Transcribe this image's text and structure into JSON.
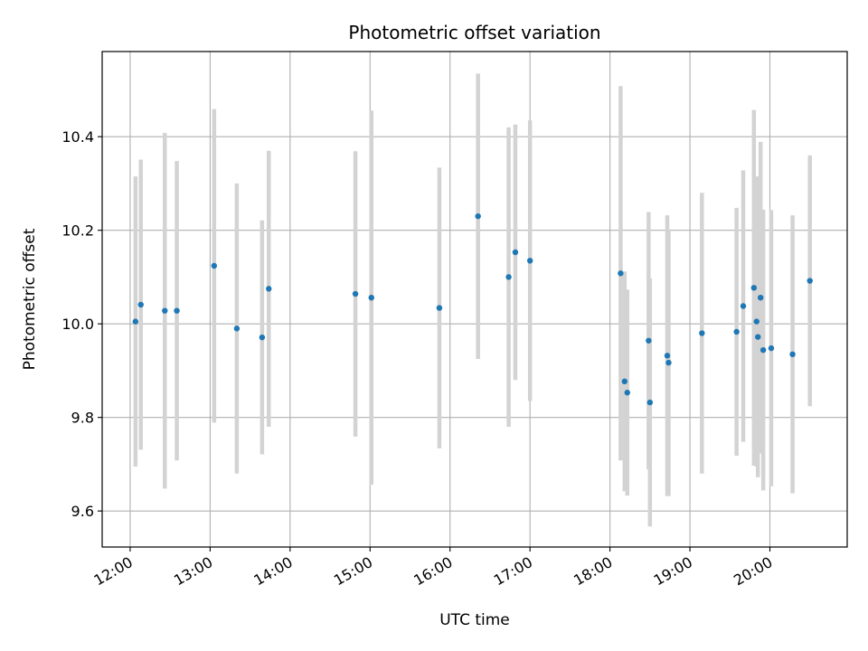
{
  "chart_data": {
    "type": "scatter",
    "title": "Photometric offset variation",
    "xlabel": "UTC time",
    "ylabel": "Photometric offset",
    "grid": true,
    "xlim": [
      "11:39",
      "20:58"
    ],
    "ylim": [
      9.523,
      10.582
    ],
    "xticks": [
      "12:00",
      "13:00",
      "14:00",
      "15:00",
      "16:00",
      "17:00",
      "18:00",
      "19:00",
      "20:00"
    ],
    "yticks": [
      "9.6",
      "9.8",
      "10.0",
      "10.2",
      "10.4"
    ],
    "colors": {
      "marker": "#1f77b4",
      "errorbar": "#d3d3d3",
      "grid": "#b0b0b0"
    },
    "series": [
      {
        "points": [
          {
            "x": "12:04",
            "y": 10.005,
            "err": 0.31
          },
          {
            "x": "12:08",
            "y": 10.041,
            "err": 0.31
          },
          {
            "x": "12:26",
            "y": 10.028,
            "err": 0.38
          },
          {
            "x": "12:35",
            "y": 10.028,
            "err": 0.32
          },
          {
            "x": "13:03",
            "y": 10.124,
            "err": 0.335
          },
          {
            "x": "13:20",
            "y": 9.99,
            "err": 0.31
          },
          {
            "x": "13:39",
            "y": 9.971,
            "err": 0.25
          },
          {
            "x": "13:44",
            "y": 10.075,
            "err": 0.295
          },
          {
            "x": "14:49",
            "y": 10.064,
            "err": 0.305
          },
          {
            "x": "15:01",
            "y": 10.056,
            "err": 0.4
          },
          {
            "x": "15:52",
            "y": 10.034,
            "err": 0.3
          },
          {
            "x": "16:21",
            "y": 10.23,
            "err": 0.305
          },
          {
            "x": "16:44",
            "y": 10.1,
            "err": 0.32
          },
          {
            "x": "16:49",
            "y": 10.153,
            "err": 0.273
          },
          {
            "x": "17:00",
            "y": 10.135,
            "err": 0.3
          },
          {
            "x": "18:08",
            "y": 10.108,
            "err": 0.4
          },
          {
            "x": "18:11",
            "y": 9.877,
            "err": 0.235
          },
          {
            "x": "18:13",
            "y": 9.853,
            "err": 0.22
          },
          {
            "x": "18:29",
            "y": 9.964,
            "err": 0.275
          },
          {
            "x": "18:30",
            "y": 9.832,
            "err": 0.265
          },
          {
            "x": "18:43",
            "y": 9.932,
            "err": 0.3
          },
          {
            "x": "18:44",
            "y": 9.917,
            "err": 0.285
          },
          {
            "x": "19:09",
            "y": 9.98,
            "err": 0.3
          },
          {
            "x": "19:35",
            "y": 9.983,
            "err": 0.265
          },
          {
            "x": "19:40",
            "y": 10.038,
            "err": 0.29
          },
          {
            "x": "19:48",
            "y": 10.077,
            "err": 0.38
          },
          {
            "x": "19:50",
            "y": 10.005,
            "err": 0.31
          },
          {
            "x": "19:51",
            "y": 9.972,
            "err": 0.3
          },
          {
            "x": "19:53",
            "y": 10.056,
            "err": 0.333
          },
          {
            "x": "19:55",
            "y": 9.944,
            "err": 0.3
          },
          {
            "x": "20:01",
            "y": 9.948,
            "err": 0.295
          },
          {
            "x": "20:17",
            "y": 9.935,
            "err": 0.297
          },
          {
            "x": "20:30",
            "y": 10.092,
            "err": 0.268
          }
        ]
      }
    ]
  }
}
